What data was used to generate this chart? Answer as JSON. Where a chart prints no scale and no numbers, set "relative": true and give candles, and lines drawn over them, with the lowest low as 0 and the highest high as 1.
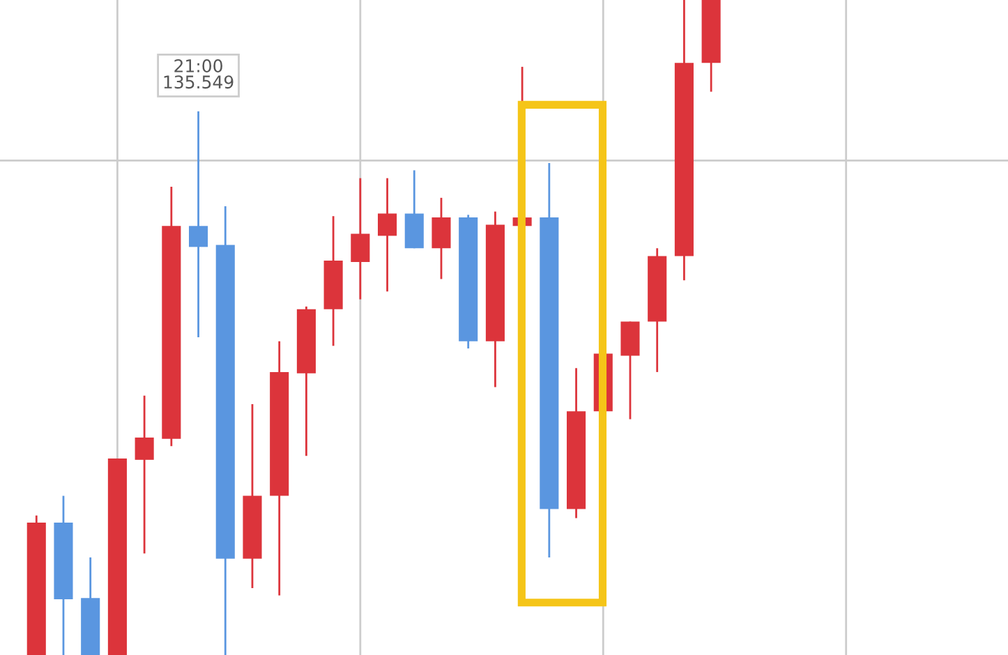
{
  "chart_data": {
    "type": "candlestick",
    "relative": true,
    "categories": [
      null,
      null,
      null,
      null,
      null,
      null,
      null,
      null,
      null,
      null,
      null,
      null,
      null,
      null,
      null,
      null,
      null,
      null,
      null,
      null,
      null,
      null,
      null,
      null,
      null,
      null,
      null,
      null,
      null,
      null,
      null,
      null,
      null,
      null,
      null,
      null,
      null
    ],
    "ohlc": [
      [
        0.0,
        0.213,
        0.0,
        0.202
      ],
      [
        0.202,
        0.243,
        0.0,
        0.085
      ],
      [
        0.087,
        0.149,
        0.0,
        0.0
      ],
      [
        0.0,
        0.3,
        0.0,
        0.3
      ],
      [
        0.298,
        0.396,
        0.155,
        0.332
      ],
      [
        0.33,
        0.715,
        0.319,
        0.655
      ],
      [
        0.655,
        0.83,
        0.485,
        0.623
      ],
      [
        0.626,
        0.685,
        0.0,
        0.147
      ],
      [
        0.147,
        0.383,
        0.102,
        0.243
      ],
      [
        0.243,
        0.479,
        0.091,
        0.432
      ],
      [
        0.43,
        0.532,
        0.304,
        0.528
      ],
      [
        0.528,
        0.67,
        0.472,
        0.602
      ],
      [
        0.6,
        0.728,
        0.543,
        0.643
      ],
      [
        0.64,
        0.728,
        0.555,
        0.674
      ],
      [
        0.674,
        0.74,
        0.621,
        0.621
      ],
      [
        0.621,
        0.698,
        0.574,
        0.668
      ],
      [
        0.668,
        0.672,
        0.468,
        0.479
      ],
      [
        0.479,
        0.677,
        0.409,
        0.657
      ],
      [
        0.655,
        0.898,
        0.655,
        0.668
      ],
      [
        0.668,
        0.751,
        0.149,
        0.223
      ],
      [
        0.223,
        0.438,
        0.209,
        0.372
      ],
      [
        0.372,
        0.46,
        0.372,
        0.46
      ],
      [
        0.457,
        0.509,
        0.36,
        0.509
      ],
      [
        0.509,
        0.621,
        0.432,
        0.609
      ],
      [
        0.609,
        1.0,
        0.572,
        0.904
      ],
      [
        0.904,
        1.0,
        0.86,
        1.0
      ],
      null,
      null,
      null,
      null,
      null,
      null,
      null,
      null,
      null,
      null,
      null
    ],
    "colors": [
      "#dc343b",
      "#5a96e0",
      "#5a96e0",
      "#dc343b",
      "#dc343b",
      "#dc343b",
      "#5a96e0",
      "#5a96e0",
      "#dc343b",
      "#dc343b",
      "#dc343b",
      "#dc343b",
      "#dc343b",
      "#dc343b",
      "#5a96e0",
      "#dc343b",
      "#5a96e0",
      "#dc343b",
      "#dc343b",
      "#5a96e0",
      "#dc343b",
      "#dc343b",
      "#dc343b",
      "#dc343b",
      "#dc343b",
      "#dc343b",
      null,
      null,
      null,
      null,
      null,
      null,
      null,
      null,
      null,
      null,
      null
    ],
    "grid": "x",
    "ref_lines": [
      {
        "axis": "y",
        "value": 0.755,
        "color": "#cccccc"
      }
    ],
    "annotations": [
      {
        "text": "21:00\n135.549",
        "y": 0.83
      }
    ]
  }
}
